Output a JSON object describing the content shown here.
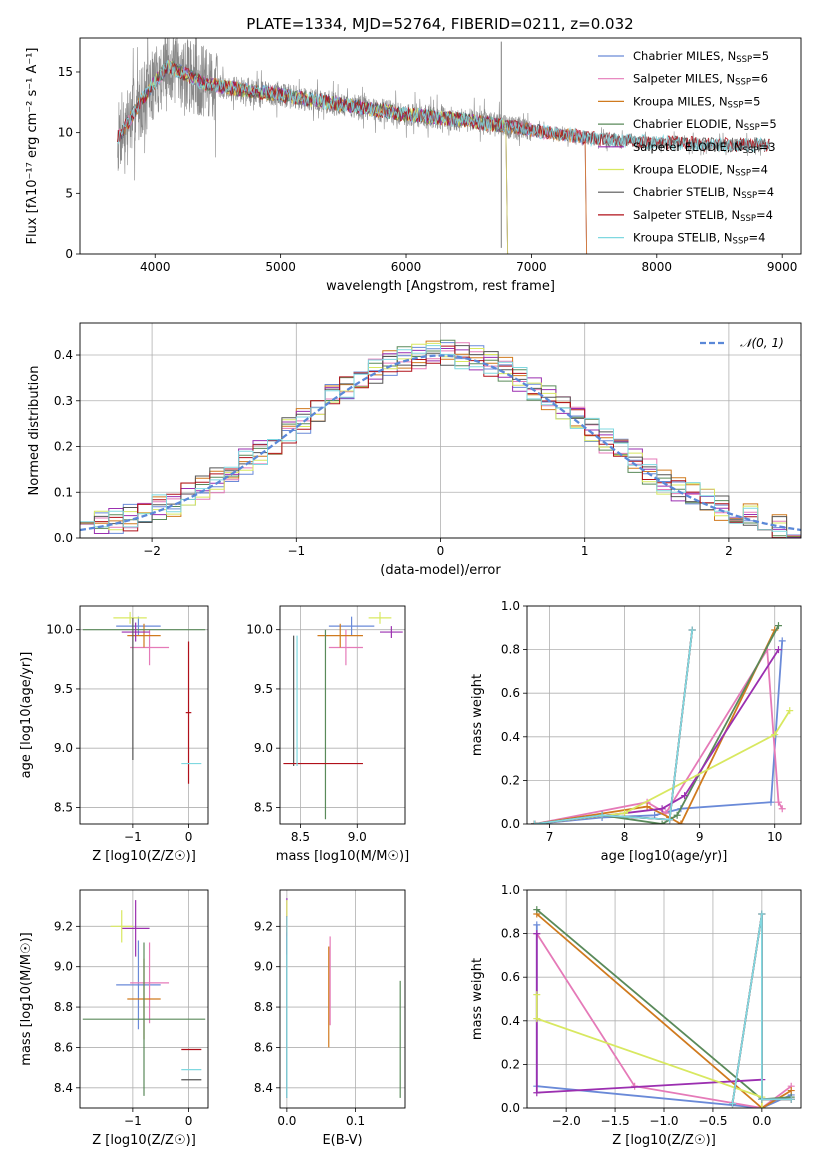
{
  "title": "PLATE=1334, MJD=52764, FIBERID=0211, z=0.032",
  "colors": {
    "Chabrier MILES": "#6a8ad8",
    "Salpeter MILES": "#e57ab8",
    "Kroupa MILES": "#d07a1e",
    "Chabrier ELODIE": "#5a8a5a",
    "Salpeter ELODIE": "#9b2fb0",
    "Kroupa ELODIE": "#d8e860",
    "Chabrier STELIB": "#555555",
    "Salpeter STELIB": "#b0101a",
    "Kroupa STELIB": "#7fd8e0",
    "data": "#888888",
    "normal": "#5a88d8"
  },
  "chart_data": [
    {
      "id": "spectrum",
      "type": "line",
      "title": "PLATE=1334, MJD=52764, FIBERID=0211, z=0.032",
      "xlabel": "wavelength [Angstrom, rest frame]",
      "ylabel": "Flux [fλ10⁻¹⁷ erg cm⁻² s⁻¹ A⁻¹]",
      "xlim": [
        3400,
        9150
      ],
      "ylim": [
        0,
        17.8
      ],
      "xticks": [
        4000,
        5000,
        6000,
        7000,
        8000,
        9000
      ],
      "yticks": [
        0,
        5,
        10,
        15
      ],
      "legend_position": "upper right",
      "legend": [
        {
          "label": "Chabrier MILES, N",
          "sub": "SSP",
          "eq": "=5"
        },
        {
          "label": "Salpeter MILES, N",
          "sub": "SSP",
          "eq": "=6"
        },
        {
          "label": "Kroupa MILES, N",
          "sub": "SSP",
          "eq": "=5"
        },
        {
          "label": "Chabrier ELODIE, N",
          "sub": "SSP",
          "eq": "=5"
        },
        {
          "label": "Salpeter ELODIE, N",
          "sub": "SSP",
          "eq": "=3"
        },
        {
          "label": "Kroupa ELODIE, N",
          "sub": "SSP",
          "eq": "=4"
        },
        {
          "label": "Chabrier STELIB, N",
          "sub": "SSP",
          "eq": "=4"
        },
        {
          "label": "Salpeter STELIB, N",
          "sub": "SSP",
          "eq": "=4"
        },
        {
          "label": "Kroupa STELIB, N",
          "sub": "SSP",
          "eq": "=4"
        }
      ],
      "data_range": [
        3700,
        8900
      ],
      "model_ranges": {
        "MILES": [
          3700,
          7430
        ],
        "ELODIE": [
          3900,
          6800
        ],
        "STELIB": [
          3700,
          8900
        ]
      },
      "continuum_knots": [
        [
          3700,
          9.5
        ],
        [
          3900,
          12.8
        ],
        [
          4100,
          15.5
        ],
        [
          4400,
          14.0
        ],
        [
          5000,
          13.1
        ],
        [
          5500,
          12.3
        ],
        [
          6000,
          11.5
        ],
        [
          6500,
          11.0
        ],
        [
          7000,
          10.2
        ],
        [
          7500,
          9.5
        ],
        [
          8000,
          9.2
        ],
        [
          8500,
          9.0
        ],
        [
          8900,
          9.0
        ]
      ]
    },
    {
      "id": "residuals",
      "type": "bar",
      "xlabel": "(data-model)/error",
      "ylabel": "Normed distribution",
      "xlim": [
        -2.5,
        2.5
      ],
      "ylim": [
        0,
        0.47
      ],
      "xticks": [
        -2,
        -1,
        0,
        1,
        2
      ],
      "yticks": [
        0.0,
        0.1,
        0.2,
        0.3,
        0.4
      ],
      "legend": [
        "𝒩(0, 1)"
      ],
      "bin_width": 0.1
    },
    {
      "id": "age-vs-Z",
      "type": "scatter",
      "xlabel": "Z [log10(Z/Z☉)]",
      "ylabel": "age  [log10(age/yr)]",
      "xlim": [
        -1.95,
        0.35
      ],
      "ylim": [
        8.36,
        10.2
      ],
      "xticks": [
        -1,
        0
      ],
      "yticks": [
        8.5,
        9.0,
        9.5,
        10.0
      ],
      "points": [
        {
          "model": "Chabrier MILES",
          "x": -0.9,
          "xerr": 0.4,
          "y": 10.03,
          "yerr": 0.08
        },
        {
          "model": "Salpeter MILES",
          "x": -0.7,
          "xerr": 0.35,
          "y": 9.85,
          "yerr": 0.15
        },
        {
          "model": "Kroupa MILES",
          "x": -0.8,
          "xerr": 0.3,
          "y": 9.95,
          "yerr": 0.1
        },
        {
          "model": "Chabrier ELODIE",
          "x": -0.8,
          "xerr": 1.1,
          "y": 10.0,
          "yerr": 0.0
        },
        {
          "model": "Salpeter ELODIE",
          "x": -0.95,
          "xerr": 0.25,
          "y": 9.98,
          "yerr": 0.08
        },
        {
          "model": "Kroupa ELODIE",
          "x": -1.05,
          "xerr": 0.3,
          "y": 10.1,
          "yerr": 0.05
        },
        {
          "model": "Chabrier STELIB",
          "x": -1.0,
          "xerr": 0.0,
          "y": 9.5,
          "yerr": 0.6
        },
        {
          "model": "Salpeter STELIB",
          "x": 0.0,
          "xerr": 0.05,
          "y": 9.3,
          "yerr": 0.6
        },
        {
          "model": "Kroupa STELIB",
          "x": 0.05,
          "xerr": 0.18,
          "y": 8.87,
          "yerr": 0.0
        }
      ]
    },
    {
      "id": "age-vs-mass",
      "type": "scatter",
      "xlabel": "mass [log10(M/M☉)]",
      "ylabel": "",
      "xlim": [
        8.32,
        9.42
      ],
      "ylim": [
        8.36,
        10.2
      ],
      "xticks": [
        8.5,
        9.0
      ],
      "yticks": [
        8.5,
        9.0,
        9.5,
        10.0
      ],
      "points": [
        {
          "model": "Chabrier MILES",
          "x": 8.95,
          "xerr": 0.2,
          "y": 10.03,
          "yerr": 0.08
        },
        {
          "model": "Salpeter MILES",
          "x": 8.9,
          "xerr": 0.15,
          "y": 9.85,
          "yerr": 0.15
        },
        {
          "model": "Kroupa MILES",
          "x": 8.85,
          "xerr": 0.2,
          "y": 9.95,
          "yerr": 0.1
        },
        {
          "model": "Chabrier ELODIE",
          "x": 8.72,
          "xerr": 0.0,
          "y": 9.2,
          "yerr": 0.8
        },
        {
          "model": "Salpeter ELODIE",
          "x": 9.3,
          "xerr": 0.1,
          "y": 9.98,
          "yerr": 0.05
        },
        {
          "model": "Kroupa ELODIE",
          "x": 9.2,
          "xerr": 0.1,
          "y": 10.1,
          "yerr": 0.05
        },
        {
          "model": "Chabrier STELIB",
          "x": 8.44,
          "xerr": 0.0,
          "y": 9.4,
          "yerr": 0.55
        },
        {
          "model": "Salpeter STELIB",
          "x": 8.7,
          "xerr": 0.35,
          "y": 8.87,
          "yerr": 0.0
        },
        {
          "model": "Kroupa STELIB",
          "x": 8.47,
          "xerr": 0.0,
          "y": 9.4,
          "yerr": 0.55
        }
      ]
    },
    {
      "id": "mass-weight-vs-age",
      "type": "line",
      "xlabel": "age  [log10(age/yr)]",
      "ylabel": "mass weight",
      "xlim": [
        6.7,
        10.35
      ],
      "ylim": [
        0,
        1.0
      ],
      "xticks": [
        7,
        8,
        9,
        10
      ],
      "yticks": [
        0.0,
        0.2,
        0.4,
        0.6,
        0.8,
        1.0
      ],
      "series": [
        {
          "model": "Chabrier MILES",
          "x": [
            6.8,
            7.7,
            8.4,
            8.75,
            9.95,
            10.1
          ],
          "y": [
            0.0,
            0.03,
            0.04,
            0.07,
            0.1,
            0.84
          ]
        },
        {
          "model": "Salpeter MILES",
          "x": [
            6.8,
            8.3,
            8.55,
            9.9,
            10.05,
            10.1
          ],
          "y": [
            0.0,
            0.1,
            0.05,
            0.8,
            0.1,
            0.07
          ]
        },
        {
          "model": "Kroupa MILES",
          "x": [
            6.8,
            8.3,
            8.6,
            8.75,
            10.0
          ],
          "y": [
            0.0,
            0.08,
            0.03,
            0.0,
            0.89
          ]
        },
        {
          "model": "Chabrier ELODIE",
          "x": [
            6.8,
            7.7,
            8.5,
            8.7,
            10.05
          ],
          "y": [
            0.0,
            0.04,
            0.0,
            0.04,
            0.91
          ]
        },
        {
          "model": "Salpeter ELODIE",
          "x": [
            6.8,
            8.5,
            8.8,
            10.05
          ],
          "y": [
            0.0,
            0.07,
            0.13,
            0.8
          ]
        },
        {
          "model": "Kroupa ELODIE",
          "x": [
            6.8,
            8.0,
            10.0,
            10.2
          ],
          "y": [
            0.0,
            0.05,
            0.41,
            0.52
          ]
        },
        {
          "model": "Chabrier STELIB",
          "x": [
            6.8,
            7.7,
            8.6,
            8.9
          ],
          "y": [
            0.0,
            0.04,
            0.02,
            0.89
          ]
        },
        {
          "model": "Salpeter STELIB",
          "x": [
            6.8,
            7.7,
            8.6,
            8.9
          ],
          "y": [
            0.0,
            0.04,
            0.02,
            0.89
          ]
        },
        {
          "model": "Kroupa STELIB",
          "x": [
            6.8,
            7.7,
            8.6,
            8.9
          ],
          "y": [
            0.0,
            0.04,
            0.02,
            0.89
          ]
        }
      ]
    },
    {
      "id": "mass-vs-Z",
      "type": "scatter",
      "xlabel": "Z [log10(Z/Z☉)]",
      "ylabel": "mass [log10(M/M☉)]",
      "xlim": [
        -1.95,
        0.35
      ],
      "ylim": [
        8.3,
        9.38
      ],
      "xticks": [
        -1,
        0
      ],
      "yticks": [
        8.4,
        8.6,
        8.8,
        9.0,
        9.2
      ],
      "points": [
        {
          "model": "Chabrier MILES",
          "x": -0.9,
          "xerr": 0.4,
          "y": 8.91,
          "yerr": 0.22
        },
        {
          "model": "Salpeter MILES",
          "x": -0.7,
          "xerr": 0.35,
          "y": 8.92,
          "yerr": 0.2
        },
        {
          "model": "Kroupa MILES",
          "x": -0.8,
          "xerr": 0.3,
          "y": 8.84,
          "yerr": 0.2
        },
        {
          "model": "Chabrier ELODIE",
          "x": -0.8,
          "xerr": 1.1,
          "y": 8.74,
          "yerr": 0.38
        },
        {
          "model": "Salpeter ELODIE",
          "x": -0.95,
          "xerr": 0.25,
          "y": 9.19,
          "yerr": 0.14
        },
        {
          "model": "Kroupa ELODIE",
          "x": -1.2,
          "xerr": 0.2,
          "y": 9.2,
          "yerr": 0.08
        },
        {
          "model": "Chabrier STELIB",
          "x": 0.05,
          "xerr": 0.18,
          "y": 8.44,
          "yerr": 0.0
        },
        {
          "model": "Salpeter STELIB",
          "x": 0.05,
          "xerr": 0.18,
          "y": 8.59,
          "yerr": 0.0
        },
        {
          "model": "Kroupa STELIB",
          "x": 0.05,
          "xerr": 0.18,
          "y": 8.49,
          "yerr": 0.0
        }
      ]
    },
    {
      "id": "mass-vs-EBV",
      "type": "scatter",
      "xlabel": "E(B-V)",
      "ylabel": "",
      "xlim": [
        -0.01,
        0.172
      ],
      "ylim": [
        8.3,
        9.38
      ],
      "xticks": [
        0.0,
        0.1
      ],
      "yticks": [
        8.4,
        8.6,
        8.8,
        9.0,
        9.2
      ],
      "points": [
        {
          "model": "Chabrier MILES",
          "x": 0.0,
          "xerr": 0.0,
          "y": 8.8,
          "yerr": 0.45
        },
        {
          "model": "Salpeter MILES",
          "x": 0.063,
          "xerr": 0.0,
          "y": 8.93,
          "yerr": 0.22
        },
        {
          "model": "Kroupa MILES",
          "x": 0.061,
          "xerr": 0.0,
          "y": 8.85,
          "yerr": 0.25
        },
        {
          "model": "Chabrier ELODIE",
          "x": 0.165,
          "xerr": 0.0,
          "y": 8.64,
          "yerr": 0.29
        },
        {
          "model": "Salpeter ELODIE",
          "x": 0.0,
          "xerr": 0.0,
          "y": 9.2,
          "yerr": 0.14
        },
        {
          "model": "Kroupa ELODIE",
          "x": 0.0,
          "xerr": 0.0,
          "y": 9.25,
          "yerr": 0.08
        },
        {
          "model": "Chabrier STELIB",
          "x": 0.0,
          "xerr": 0.0,
          "y": 8.75,
          "yerr": 0.4
        },
        {
          "model": "Salpeter STELIB",
          "x": 0.0,
          "xerr": 0.0,
          "y": 9.2,
          "yerr": 0.05
        },
        {
          "model": "Kroupa STELIB",
          "x": 0.0,
          "xerr": 0.0,
          "y": 8.8,
          "yerr": 0.45
        }
      ]
    },
    {
      "id": "mass-weight-vs-Z",
      "type": "line",
      "xlabel": "Z [log10(Z/Z☉)]",
      "ylabel": "mass weight",
      "xlim": [
        -2.4,
        0.4
      ],
      "ylim": [
        0,
        1.0
      ],
      "xticks": [
        -2.0,
        -1.5,
        -1.0,
        -0.5,
        0.0
      ],
      "yticks": [
        0.0,
        0.2,
        0.4,
        0.6,
        0.8,
        1.0
      ],
      "series": [
        {
          "model": "Chabrier MILES",
          "x": [
            -2.3,
            -2.3,
            0.0,
            0.3
          ],
          "y": [
            0.84,
            0.1,
            0.0,
            0.06
          ]
        },
        {
          "model": "Salpeter MILES",
          "x": [
            -2.3,
            -1.3,
            0.0,
            0.3
          ],
          "y": [
            0.8,
            0.1,
            0.0,
            0.1
          ]
        },
        {
          "model": "Kroupa MILES",
          "x": [
            -2.3,
            0.0,
            0.3
          ],
          "y": [
            0.89,
            0.0,
            0.08
          ]
        },
        {
          "model": "Chabrier ELODIE",
          "x": [
            -2.3,
            0.0,
            0.3
          ],
          "y": [
            0.91,
            0.04,
            0.05
          ]
        },
        {
          "model": "Salpeter ELODIE",
          "x": [
            -2.3,
            -2.3,
            0.0
          ],
          "y": [
            0.8,
            0.07,
            0.13
          ]
        },
        {
          "model": "Kroupa ELODIE",
          "x": [
            -2.3,
            -2.3,
            0.0,
            0.0
          ],
          "y": [
            0.52,
            0.41,
            0.05,
            0.0
          ]
        },
        {
          "model": "Chabrier STELIB",
          "x": [
            -0.3,
            0.0,
            0.0,
            0.3
          ],
          "y": [
            0.02,
            0.89,
            0.04,
            0.04
          ]
        },
        {
          "model": "Salpeter STELIB",
          "x": [
            -0.3,
            0.0,
            0.0,
            0.3
          ],
          "y": [
            0.02,
            0.89,
            0.04,
            0.04
          ]
        },
        {
          "model": "Kroupa STELIB",
          "x": [
            -0.3,
            0.0,
            0.0,
            0.3
          ],
          "y": [
            0.02,
            0.89,
            0.04,
            0.04
          ]
        }
      ]
    }
  ]
}
